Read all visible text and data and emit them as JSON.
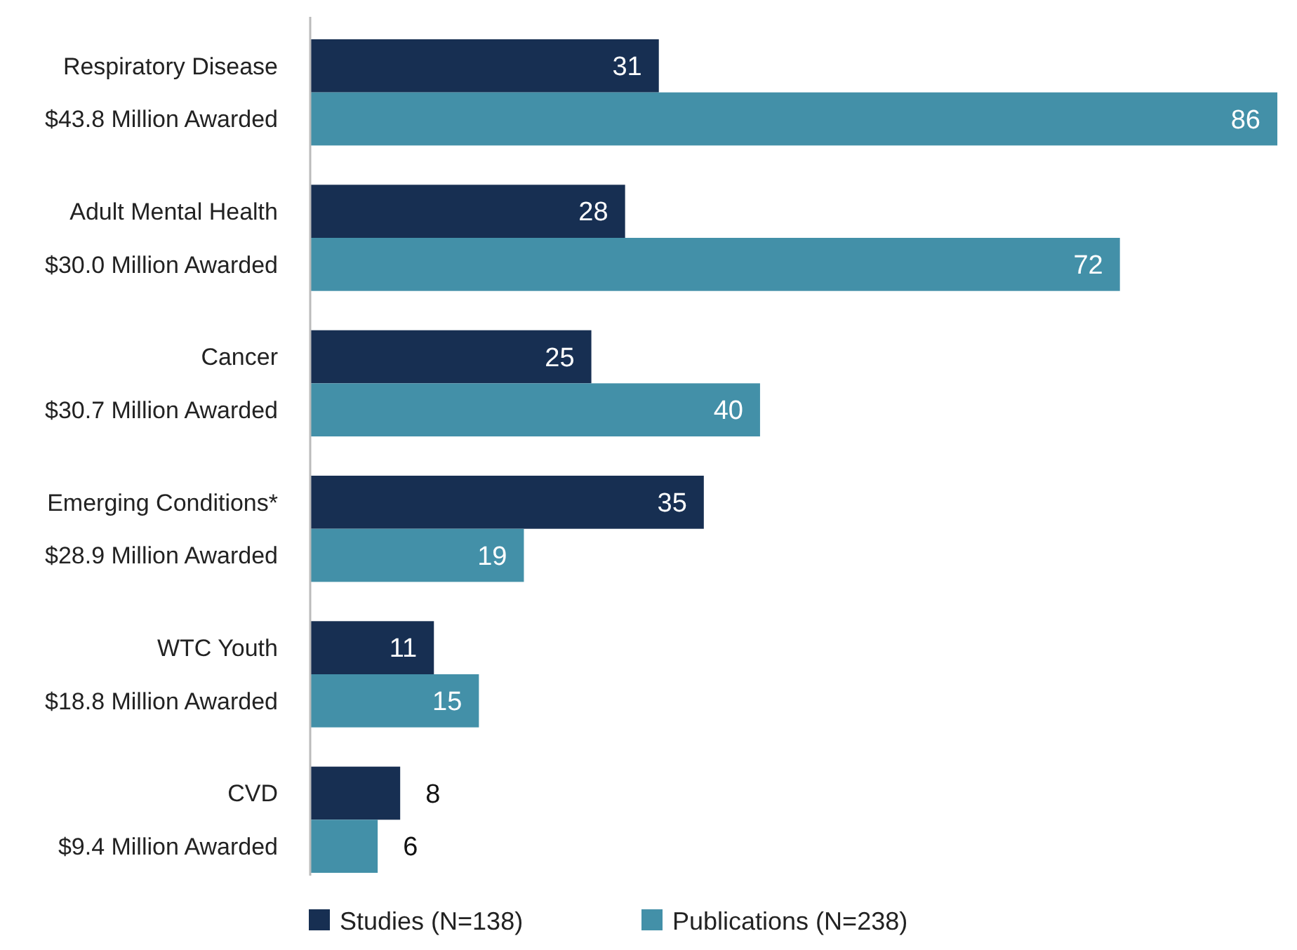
{
  "chart_data": {
    "type": "bar",
    "orientation": "horizontal",
    "categories": [
      "Respiratory Disease\n$43.8 Million Awarded",
      "Adult Mental Health\n$30.0 Million Awarded",
      "Cancer\n$30.7 Million Awarded",
      "Emerging Conditions*\n$28.9 Million Awarded",
      "WTC Youth\n$18.8 Million Awarded",
      "CVD\n$9.4 Million Awarded"
    ],
    "series": [
      {
        "name": "Studies (N=138)",
        "color": "#172f52",
        "values": [
          31,
          28,
          25,
          35,
          11,
          8
        ]
      },
      {
        "name": "Publications (N=238)",
        "color": "#4390a8",
        "values": [
          86,
          72,
          40,
          19,
          15,
          6
        ]
      }
    ],
    "data_labels": true,
    "legend": "bottom"
  }
}
